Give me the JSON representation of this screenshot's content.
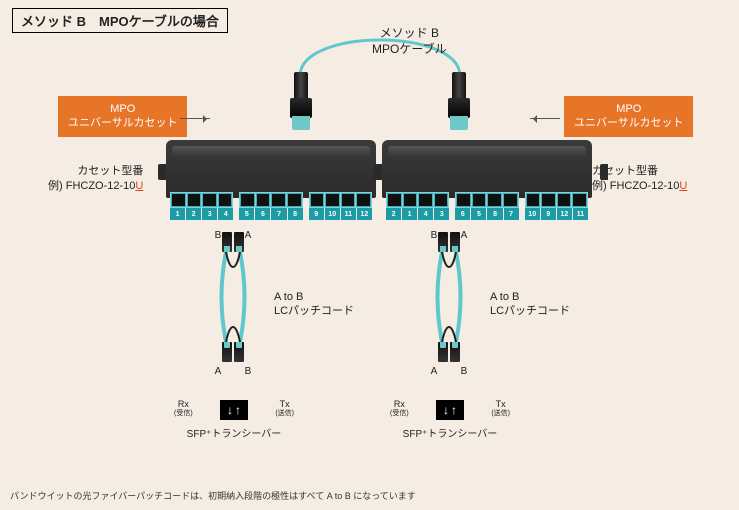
{
  "title": "メソッド B　MPOケーブルの場合",
  "topCable": {
    "line1": "メソッド B",
    "line2": "MPOケーブル",
    "color": "#5ec8cc",
    "stroke": 3
  },
  "tagLeft": {
    "line1": "MPO",
    "line2": "ユニバーサルカセット"
  },
  "tagRight": {
    "line1": "MPO",
    "line2": "ユニバーサルカセット"
  },
  "modelLabel": "カセット型番",
  "modelExample": "例) FHCZO-12-10",
  "modelSuffix": "U",
  "cassetteLeft": {
    "ports": [
      [
        "1",
        "2",
        "3",
        "4"
      ],
      [
        "5",
        "6",
        "7",
        "8"
      ],
      [
        "9",
        "10",
        "11",
        "12"
      ]
    ]
  },
  "cassetteRight": {
    "ports": [
      [
        "2",
        "1",
        "4",
        "3"
      ],
      [
        "6",
        "5",
        "8",
        "7"
      ],
      [
        "10",
        "9",
        "12",
        "11"
      ]
    ]
  },
  "patch": {
    "topA": "A",
    "topB": "B",
    "botA": "A",
    "botB": "B",
    "label1": "A to B",
    "label2": "LCパッチコード",
    "cordColor": "#5ec8cc"
  },
  "sfp": {
    "rx": "Rx",
    "rxSub": "(受信)",
    "tx": "Tx",
    "txSub": "(送信)",
    "name": "SFP⁺トランシーバー",
    "arrDown": "↓",
    "arrUp": "↑"
  },
  "footnote": "パンドウイットの光ファイバーパッチコードは、初期納入段階の極性はすべて A to B になっています",
  "colors": {
    "orange": "#e67528",
    "teal": "#1a9ba5",
    "aqua": "#6fc8c8"
  }
}
